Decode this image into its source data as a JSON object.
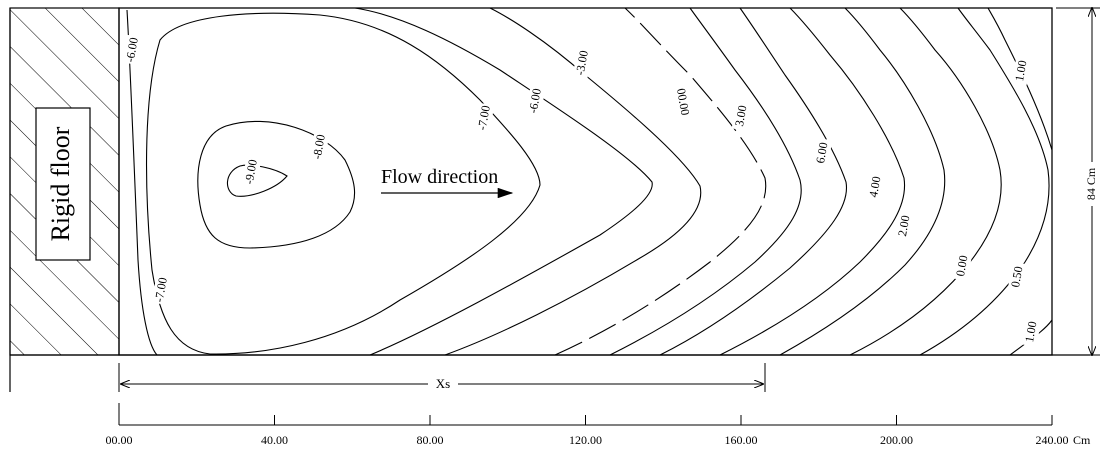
{
  "diagram": {
    "floor_label": "Rigid floor",
    "flow_label": "Flow direction",
    "xs_label": "Xs",
    "width_label": "84 Cm",
    "x_axis": {
      "unit": "Cm",
      "ticks": [
        "00.00",
        "40.00",
        "80.00",
        "120.00",
        "160.00",
        "200.00",
        "240.00"
      ]
    },
    "contour_labels": {
      "c_m900": "-9.00",
      "c_m800": "-8.00",
      "c_m700_top": "-7.00",
      "c_m700_bottom": "-7.00",
      "c_m600_left": "-6.00",
      "c_m600_mid": "-6.00",
      "c_m300": "-3.00",
      "c_000_dashed": "00.00",
      "c_300": "3.00",
      "c_600": "6.00",
      "c_400": "4.00",
      "c_200": "2.00",
      "c_000": "0.00",
      "c_050": "0.50",
      "c_100_top": "1.00",
      "c_100_bottom": "1.00"
    }
  }
}
